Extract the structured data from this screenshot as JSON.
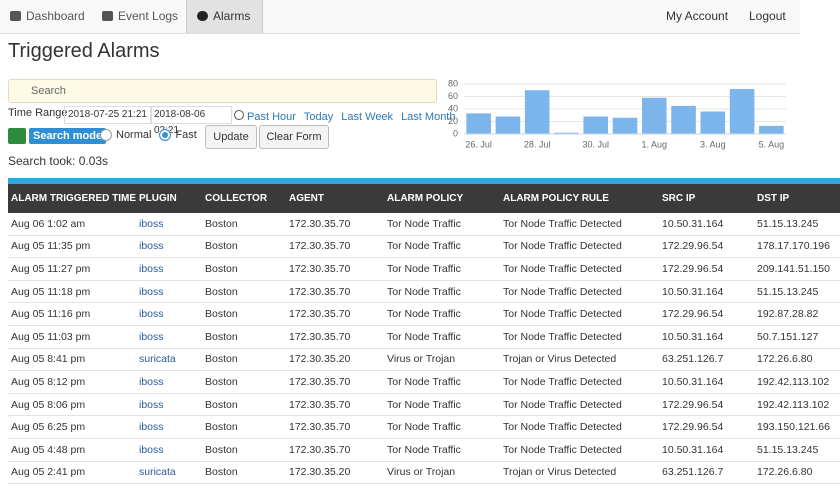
{
  "nav": {
    "items": [
      "Dashboard",
      "Event Logs",
      "Alarms"
    ],
    "active": "Alarms",
    "right": [
      "My Account",
      "Logout"
    ]
  },
  "title": "Triggered Alarms",
  "search": {
    "placeholder": "Search"
  },
  "time_range": {
    "label": "Time Range",
    "from": "2018-07-25 21:21",
    "to": "2018-08-06 02:21",
    "quick": [
      "Past Hour",
      "Today",
      "Last Week",
      "Last Month"
    ]
  },
  "search_mode": {
    "label": "Search mode",
    "options": [
      "Normal",
      "Fast"
    ],
    "selected": "Fast"
  },
  "buttons": [
    "Update",
    "Clear Form"
  ],
  "search_took": "Search took: 0.03s",
  "chart_data": {
    "type": "bar",
    "categories": [
      "26. Jul",
      null,
      "28. Jul",
      null,
      "30. Jul",
      null,
      "1. Aug",
      null,
      "3. Aug",
      null,
      "5. Aug"
    ],
    "values": [
      33,
      28,
      70,
      2,
      28,
      26,
      58,
      45,
      36,
      72,
      13
    ],
    "color": "#7cb5ec",
    "ylim": [
      0,
      80
    ],
    "yticks": [
      0,
      20,
      40,
      60,
      80
    ],
    "grid": true
  },
  "table": {
    "columns": [
      "ALARM TRIGGERED TIME",
      "PLUGIN",
      "COLLECTOR",
      "AGENT",
      "ALARM POLICY",
      "ALARM POLICY RULE",
      "SRC IP",
      "DST IP"
    ],
    "rows": [
      [
        "Aug 06 1:02 am",
        "iboss",
        "Boston",
        "172.30.35.70",
        "Tor Node Traffic",
        "Tor Node Traffic Detected",
        "10.50.31.164",
        "51.15.13.245"
      ],
      [
        "Aug 05 11:35 pm",
        "iboss",
        "Boston",
        "172.30.35.70",
        "Tor Node Traffic",
        "Tor Node Traffic Detected",
        "172.29.96.54",
        "178.17.170.196"
      ],
      [
        "Aug 05 11:27 pm",
        "iboss",
        "Boston",
        "172.30.35.70",
        "Tor Node Traffic",
        "Tor Node Traffic Detected",
        "172.29.96.54",
        "209.141.51.150"
      ],
      [
        "Aug 05 11:18 pm",
        "iboss",
        "Boston",
        "172.30.35.70",
        "Tor Node Traffic",
        "Tor Node Traffic Detected",
        "10.50.31.164",
        "51.15.13.245"
      ],
      [
        "Aug 05 11:16 pm",
        "iboss",
        "Boston",
        "172.30.35.70",
        "Tor Node Traffic",
        "Tor Node Traffic Detected",
        "172.29.96.54",
        "192.87.28.82"
      ],
      [
        "Aug 05 11:03 pm",
        "iboss",
        "Boston",
        "172.30.35.70",
        "Tor Node Traffic",
        "Tor Node Traffic Detected",
        "10.50.31.164",
        "50.7.151.127"
      ],
      [
        "Aug 05 8:41 pm",
        "suricata",
        "Boston",
        "172.30.35.20",
        "Virus or Trojan",
        "Trojan or Virus Detected",
        "63.251.126.7",
        "172.26.6.80"
      ],
      [
        "Aug 05 8:12 pm",
        "iboss",
        "Boston",
        "172.30.35.70",
        "Tor Node Traffic",
        "Tor Node Traffic Detected",
        "10.50.31.164",
        "192.42.113.102"
      ],
      [
        "Aug 05 8:06 pm",
        "iboss",
        "Boston",
        "172.30.35.70",
        "Tor Node Traffic",
        "Tor Node Traffic Detected",
        "172.29.96.54",
        "192.42.113.102"
      ],
      [
        "Aug 05 6:25 pm",
        "iboss",
        "Boston",
        "172.30.35.70",
        "Tor Node Traffic",
        "Tor Node Traffic Detected",
        "172.29.96.54",
        "193.150.121.66"
      ],
      [
        "Aug 05 4:48 pm",
        "iboss",
        "Boston",
        "172.30.35.70",
        "Tor Node Traffic",
        "Tor Node Traffic Detected",
        "10.50.31.164",
        "51.15.13.245"
      ],
      [
        "Aug 05 2:41 pm",
        "suricata",
        "Boston",
        "172.30.35.20",
        "Virus or Trojan",
        "Trojan or Virus Detected",
        "63.251.126.7",
        "172.26.6.80"
      ]
    ]
  }
}
